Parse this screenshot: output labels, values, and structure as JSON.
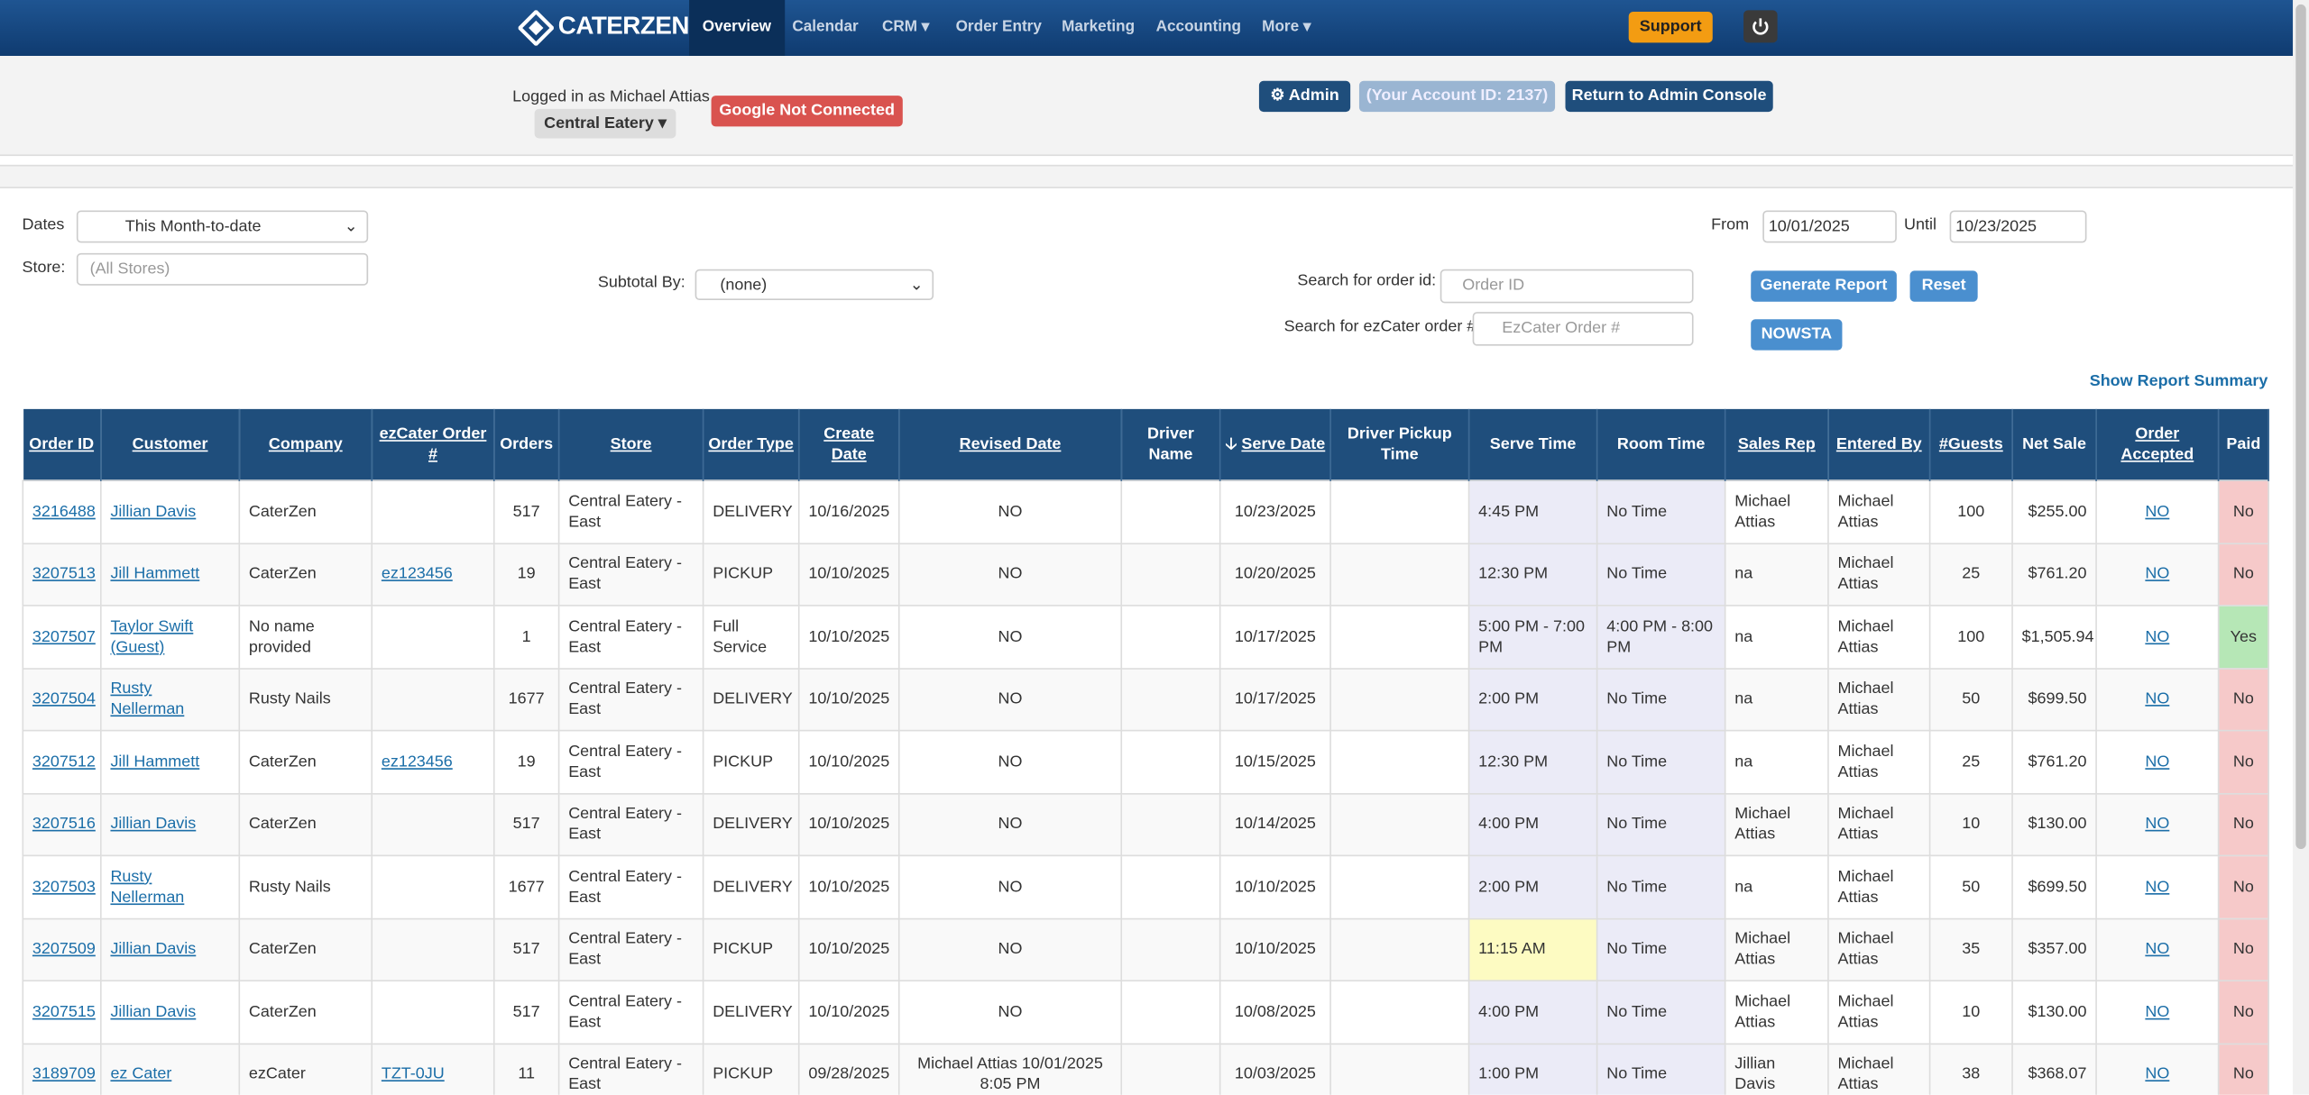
{
  "nav": {
    "brand": "CaterZen",
    "items": [
      "Overview",
      "Calendar",
      "CRM",
      "Order Entry",
      "Marketing",
      "Accounting",
      "More"
    ],
    "support": "Support"
  },
  "account": {
    "logged_in": "Logged in as Michael Attias",
    "store": "Central Eatery",
    "google": "Google Not Connected",
    "admin": "Admin",
    "account_id": "(Your Account ID: 2137)",
    "return": "Return to Admin Console"
  },
  "filters": {
    "dates_label": "Dates",
    "dates_value": "This Month-to-date",
    "store_label": "Store:",
    "store_placeholder": "(All Stores)",
    "subtotal_label": "Subtotal By:",
    "subtotal_value": "(none)",
    "from_label": "From",
    "from_value": "10/01/2025",
    "until_label": "Until",
    "until_value": "10/23/2025",
    "order_id_label": "Search for order id:",
    "order_id_placeholder": "Order ID",
    "ezcater_label": "Search for ezCater order #:",
    "ezcater_placeholder": "EzCater Order #",
    "generate": "Generate Report",
    "reset": "Reset",
    "nowsta": "NOWSTA",
    "summary": "Show Report Summary"
  },
  "table": {
    "headers": [
      "Order ID",
      "Customer",
      "Company",
      "ezCater Order #",
      "Orders",
      "Store",
      "Order Type",
      "Create Date",
      "Revised Date",
      "Driver Name",
      "Serve Date",
      "Driver Pickup Time",
      "Serve Time",
      "Room Time",
      "Sales Rep",
      "Entered By",
      "#Guests",
      "Net Sale",
      "Order Accepted",
      "Paid"
    ],
    "rows": [
      [
        "3216488",
        "Jillian Davis",
        "CaterZen",
        null,
        "517",
        "Central Eatery - East",
        "DELIVERY",
        "10/16/2025",
        "NO",
        null,
        "10/23/2025",
        null,
        "4:45 PM",
        "No Time",
        "Michael Attias",
        "Michael Attias",
        "100",
        "$255.00",
        "NO",
        "No"
      ],
      [
        "3207513",
        "Jill Hammett",
        "CaterZen",
        "ez123456",
        "19",
        "Central Eatery - East",
        "PICKUP",
        "10/10/2025",
        "NO",
        null,
        "10/20/2025",
        null,
        "12:30 PM",
        "No Time",
        "na",
        "Michael Attias",
        "25",
        "$761.20",
        "NO",
        "No"
      ],
      [
        "3207507",
        "Taylor Swift (Guest)",
        "No name provided",
        null,
        "1",
        "Central Eatery - East",
        "Full Service",
        "10/10/2025",
        "NO",
        null,
        "10/17/2025",
        null,
        "5:00 PM - 7:00 PM",
        "4:00 PM - 8:00 PM",
        "na",
        "Michael Attias",
        "100",
        "$1,505.94",
        "NO",
        "Yes"
      ],
      [
        "3207504",
        "Rusty Nellerman",
        "Rusty Nails",
        null,
        "1677",
        "Central Eatery - East",
        "DELIVERY",
        "10/10/2025",
        "NO",
        null,
        "10/17/2025",
        null,
        "2:00 PM",
        "No Time",
        "na",
        "Michael Attias",
        "50",
        "$699.50",
        "NO",
        "No"
      ],
      [
        "3207512",
        "Jill Hammett",
        "CaterZen",
        "ez123456",
        "19",
        "Central Eatery - East",
        "PICKUP",
        "10/10/2025",
        "NO",
        null,
        "10/15/2025",
        null,
        "12:30 PM",
        "No Time",
        "na",
        "Michael Attias",
        "25",
        "$761.20",
        "NO",
        "No"
      ],
      [
        "3207516",
        "Jillian Davis",
        "CaterZen",
        null,
        "517",
        "Central Eatery - East",
        "DELIVERY",
        "10/10/2025",
        "NO",
        null,
        "10/14/2025",
        null,
        "4:00 PM",
        "No Time",
        "Michael Attias",
        "Michael Attias",
        "10",
        "$130.00",
        "NO",
        "No"
      ],
      [
        "3207503",
        "Rusty Nellerman",
        "Rusty Nails",
        null,
        "1677",
        "Central Eatery - East",
        "DELIVERY",
        "10/10/2025",
        "NO",
        null,
        "10/10/2025",
        null,
        "2:00 PM",
        "No Time",
        "na",
        "Michael Attias",
        "50",
        "$699.50",
        "NO",
        "No"
      ],
      [
        "3207509",
        "Jillian Davis",
        "CaterZen",
        null,
        "517",
        "Central Eatery - East",
        "PICKUP",
        "10/10/2025",
        "NO",
        null,
        "10/10/2025",
        null,
        "11:15 AM",
        "No Time",
        "Michael Attias",
        "Michael Attias",
        "35",
        "$357.00",
        "NO",
        "No"
      ],
      [
        "3207515",
        "Jillian Davis",
        "CaterZen",
        null,
        "517",
        "Central Eatery - East",
        "DELIVERY",
        "10/10/2025",
        "NO",
        null,
        "10/08/2025",
        null,
        "4:00 PM",
        "No Time",
        "Michael Attias",
        "Michael Attias",
        "10",
        "$130.00",
        "NO",
        "No"
      ],
      [
        "3189709",
        "ez Cater",
        "ezCater",
        "TZT-0JU",
        "11",
        "Central Eatery - East",
        "PICKUP",
        "09/28/2025",
        "Michael Attias 10/01/2025 8:05 PM",
        null,
        "10/03/2025",
        null,
        "1:00 PM",
        "No Time",
        "Jillian Davis",
        "Michael Attias",
        "38",
        "$368.07",
        "NO",
        "No"
      ]
    ]
  }
}
